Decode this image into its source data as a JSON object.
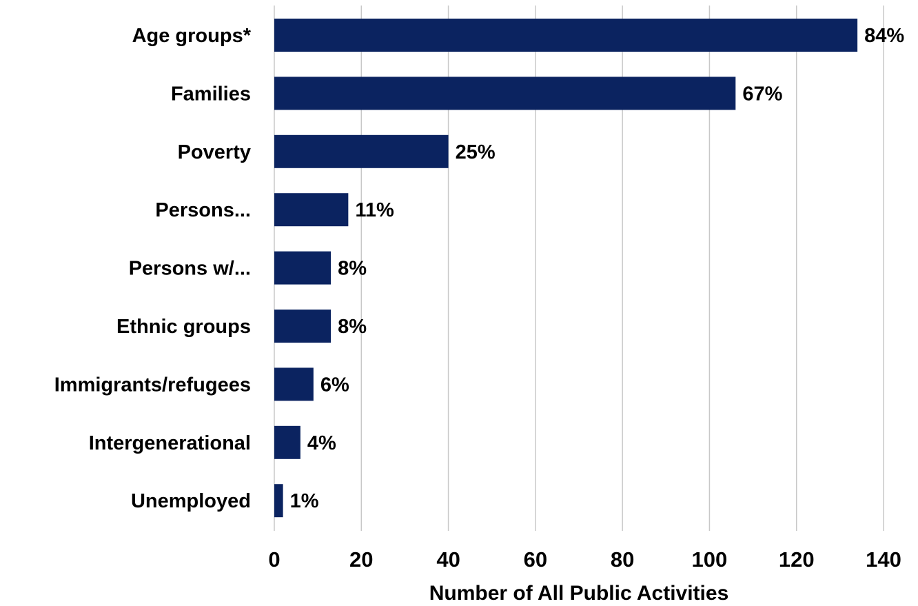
{
  "chart_data": {
    "type": "bar",
    "orientation": "horizontal",
    "categories": [
      "Age groups*",
      "Families",
      "Poverty",
      "Persons...",
      "Persons w/...",
      "Ethnic groups",
      "Immigrants/refugees",
      "Intergenerational",
      "Unemployed"
    ],
    "values": [
      134,
      106,
      40,
      17,
      13,
      13,
      9,
      6,
      2
    ],
    "data_labels": [
      "84%",
      "67%",
      "25%",
      "11%",
      "8%",
      "8%",
      "6%",
      "4%",
      "1%"
    ],
    "xlabel": "Number of All Public Activities",
    "ylabel": "",
    "xlim": [
      0,
      140
    ],
    "xticks": [
      0,
      20,
      40,
      60,
      80,
      100,
      120,
      140
    ],
    "grid": true,
    "colors": {
      "bar": "#0b2360",
      "grid": "#c8c8c8",
      "text": "#000000"
    }
  }
}
